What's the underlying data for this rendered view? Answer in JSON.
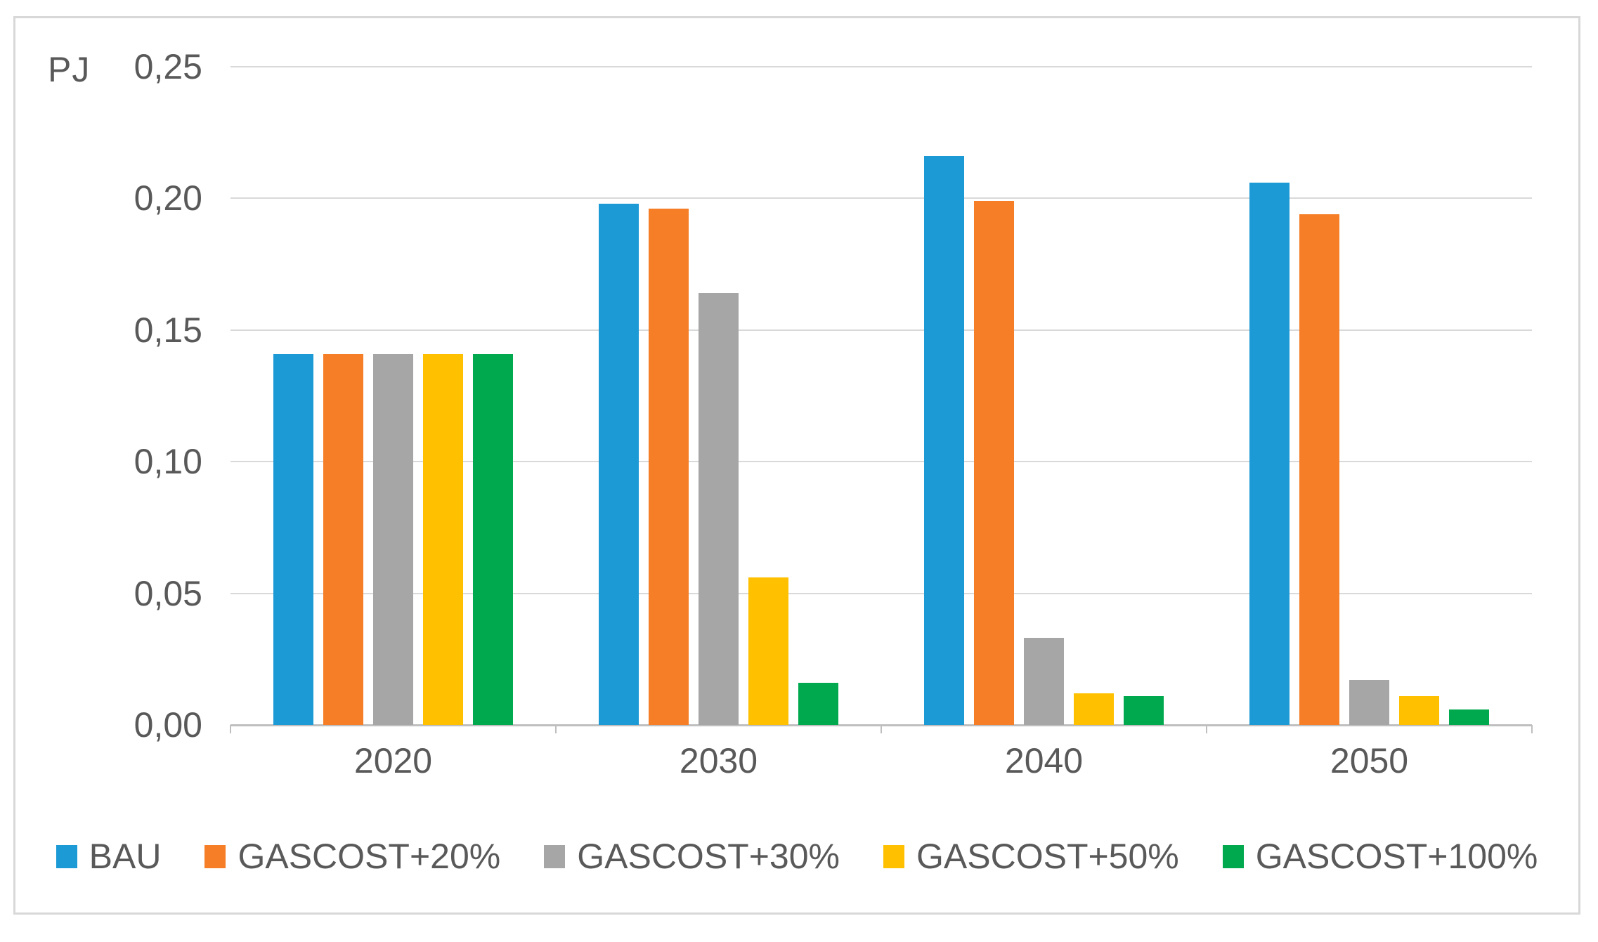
{
  "chart_data": {
    "type": "bar",
    "title": "",
    "ylabel": "PJ",
    "xlabel": "",
    "ylim": [
      0,
      0.25
    ],
    "yticks": [
      "0,00",
      "0,05",
      "0,10",
      "0,15",
      "0,20",
      "0,25"
    ],
    "grid": true,
    "legend_position": "bottom",
    "categories": [
      "2020",
      "2030",
      "2040",
      "2050"
    ],
    "series": [
      {
        "name": "BAU",
        "color": "#1C9AD6",
        "values": [
          0.141,
          0.198,
          0.216,
          0.206
        ]
      },
      {
        "name": "GASCOST+20%",
        "color": "#F57E27",
        "values": [
          0.141,
          0.196,
          0.199,
          0.194
        ]
      },
      {
        "name": "GASCOST+30%",
        "color": "#A6A6A6",
        "values": [
          0.141,
          0.164,
          0.033,
          0.017
        ]
      },
      {
        "name": "GASCOST+50%",
        "color": "#FFC000",
        "values": [
          0.141,
          0.056,
          0.012,
          0.011
        ]
      },
      {
        "name": "GASCOST+100%",
        "color": "#00A94E",
        "values": [
          0.141,
          0.016,
          0.011,
          0.006
        ]
      }
    ]
  },
  "colors": {
    "gridline": "#D9D9D9",
    "axis": "#BFBFBF",
    "text": "#595959",
    "frame_border": "#D8D8D8",
    "background": "#FFFFFF"
  }
}
